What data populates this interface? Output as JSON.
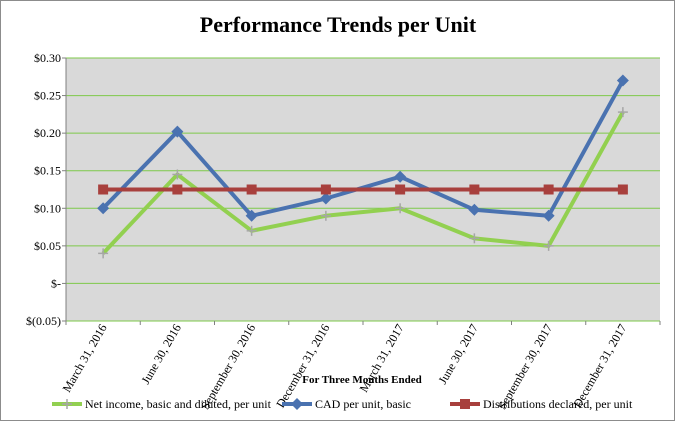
{
  "chart_data": {
    "type": "line",
    "title": "Performance Trends per Unit",
    "xlabel": "For Three Months  Ended",
    "ylabel": "",
    "categories": [
      "March 31, 2016",
      "June 30, 2016",
      "September 30, 2016",
      "December 31, 2016",
      "March 31, 2017",
      "June 30, 2017",
      "September 30, 2017",
      "December 31, 2017"
    ],
    "y_ticks": [
      {
        "value": 0.3,
        "label": "$0.30"
      },
      {
        "value": 0.25,
        "label": "$0.25"
      },
      {
        "value": 0.2,
        "label": "$0.20"
      },
      {
        "value": 0.15,
        "label": "$0.15"
      },
      {
        "value": 0.1,
        "label": "$0.10"
      },
      {
        "value": 0.05,
        "label": "$0.05"
      },
      {
        "value": 0.0,
        "label": "$-"
      },
      {
        "value": -0.05,
        "label": "$(0.05)"
      }
    ],
    "ylim": [
      -0.05,
      0.3
    ],
    "grid": true,
    "plot_background": "#d9d9d9",
    "grid_color": "#7ec94a",
    "series": [
      {
        "name": "Net income, basic and diluted, per unit",
        "color": "#92d050",
        "marker": "plus",
        "values": [
          0.04,
          0.145,
          0.07,
          0.09,
          0.1,
          0.06,
          0.05,
          0.228
        ]
      },
      {
        "name": "CAD per unit, basic",
        "color": "#4a72b0",
        "marker": "diamond",
        "values": [
          0.1,
          0.202,
          0.09,
          0.113,
          0.142,
          0.098,
          0.09,
          0.27
        ]
      },
      {
        "name": "Distributions declared, per unit",
        "color": "#a8403d",
        "marker": "square",
        "values": [
          0.125,
          0.125,
          0.125,
          0.125,
          0.125,
          0.125,
          0.125,
          0.125
        ]
      }
    ],
    "legend_position": "bottom"
  }
}
